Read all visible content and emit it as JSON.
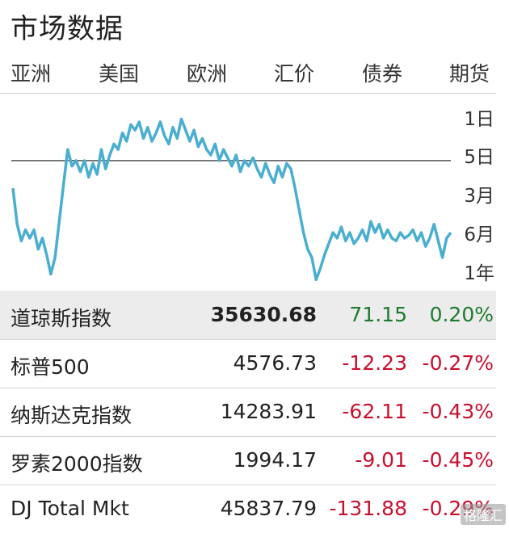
{
  "header": {
    "title": "市场数据"
  },
  "tabs": [
    {
      "label": "亚洲"
    },
    {
      "label": "美国"
    },
    {
      "label": "欧洲"
    },
    {
      "label": "汇价"
    },
    {
      "label": "债券"
    },
    {
      "label": "期货"
    }
  ],
  "chart": {
    "ranges": [
      {
        "label": "1日"
      },
      {
        "label": "5日"
      },
      {
        "label": "3月"
      },
      {
        "label": "6月"
      },
      {
        "label": "1年"
      }
    ],
    "line_color": "#4aaed0",
    "baseline_color": "#555555"
  },
  "chart_data": {
    "type": "line",
    "series": [
      {
        "values": [
          0.62,
          0.49,
          0.43,
          0.47,
          0.44,
          0.47,
          0.4,
          0.44,
          0.38,
          0.31,
          0.37,
          0.5,
          0.63,
          0.76,
          0.7,
          0.72,
          0.68,
          0.72,
          0.66,
          0.71,
          0.67,
          0.76,
          0.69,
          0.74,
          0.78,
          0.76,
          0.82,
          0.79,
          0.85,
          0.83,
          0.86,
          0.8,
          0.84,
          0.79,
          0.82,
          0.86,
          0.81,
          0.78,
          0.84,
          0.8,
          0.87,
          0.83,
          0.79,
          0.83,
          0.77,
          0.8,
          0.76,
          0.74,
          0.78,
          0.72,
          0.76,
          0.73,
          0.7,
          0.74,
          0.68,
          0.72,
          0.7,
          0.73,
          0.69,
          0.66,
          0.71,
          0.67,
          0.64,
          0.7,
          0.66,
          0.71,
          0.69,
          0.62,
          0.54,
          0.46,
          0.4,
          0.37,
          0.29,
          0.33,
          0.38,
          0.42,
          0.46,
          0.44,
          0.48,
          0.43,
          0.46,
          0.42,
          0.44,
          0.47,
          0.43,
          0.5,
          0.46,
          0.49,
          0.44,
          0.47,
          0.44,
          0.43,
          0.46,
          0.44,
          0.45,
          0.47,
          0.43,
          0.46,
          0.41,
          0.44,
          0.49,
          0.43,
          0.37,
          0.44,
          0.46
        ]
      }
    ],
    "baseline": 0.72,
    "ylim": [
      0.25,
      0.95
    ],
    "grid": false,
    "legend": "none"
  },
  "table": {
    "rows": [
      {
        "name": "道琼斯指数",
        "last": "35630.68",
        "change": "71.15",
        "percent": "0.20%",
        "direction": "up"
      },
      {
        "name": "标普500",
        "last": "4576.73",
        "change": "-12.23",
        "percent": "-0.27%",
        "direction": "down"
      },
      {
        "name": "纳斯达克指数",
        "last": "14283.91",
        "change": "-62.11",
        "percent": "-0.43%",
        "direction": "down"
      },
      {
        "name": "罗素2000指数",
        "last": "1994.17",
        "change": "-9.01",
        "percent": "-0.45%",
        "direction": "down"
      },
      {
        "name": "DJ Total Mkt",
        "last": "45837.79",
        "change": "-131.88",
        "percent": "-0.29%",
        "direction": "down"
      }
    ]
  },
  "watermark": {
    "text": "格隆汇"
  }
}
